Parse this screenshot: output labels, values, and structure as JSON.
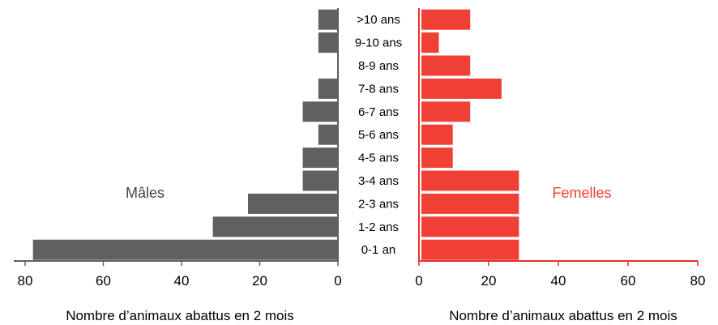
{
  "chart_data": {
    "type": "bar",
    "orientation": "horizontal",
    "layout": "population-pyramid",
    "categories": [
      ">10 ans",
      "9-10 ans",
      "8-9 ans",
      "7-8 ans",
      "6-7 ans",
      "5-6 ans",
      "4-5 ans",
      "3-4 ans",
      "2-3 ans",
      "1-2 ans",
      "0-1 an"
    ],
    "series": [
      {
        "name": "Mâles",
        "values": [
          5,
          5,
          0,
          5,
          9,
          5,
          9,
          9,
          23,
          32,
          78
        ],
        "color": "#606060"
      },
      {
        "name": "Femelles",
        "values": [
          14,
          5,
          14,
          23,
          14,
          9,
          9,
          28,
          28,
          28,
          28
        ],
        "color": "#f04035"
      }
    ],
    "left_axis": {
      "xlim": [
        80,
        0
      ],
      "ticks": [
        80,
        60,
        40,
        20,
        0
      ],
      "xlabel": "Nombre d’animaux abattus en 2 mois",
      "axis_color": "#606060"
    },
    "right_axis": {
      "xlim": [
        0,
        80
      ],
      "ticks": [
        0,
        20,
        40,
        60,
        80
      ],
      "xlabel": "Nombre d’animaux abattus en 2 mois",
      "axis_color": "#e8302a"
    },
    "grid": false,
    "legend": "inline labels"
  }
}
